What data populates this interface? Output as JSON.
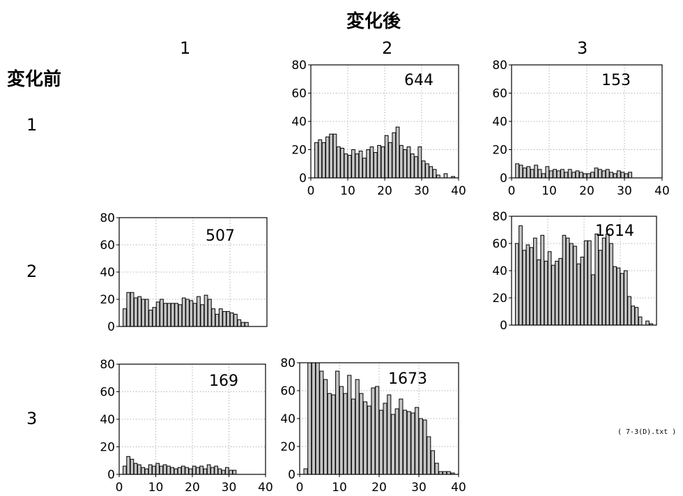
{
  "title_after": "変化後",
  "title_before": "変化前",
  "col_labels": [
    "1",
    "2",
    "3"
  ],
  "row_labels": [
    "1",
    "2",
    "3"
  ],
  "footnote": "( 7-3(D).txt )",
  "colors": {
    "bar_fill": "#c4c4c4",
    "bar_stroke": "#000000",
    "grid": "#9a9a9a"
  },
  "chart_data": [
    {
      "type": "bar",
      "id": "1-2",
      "from": "1",
      "to": "2",
      "count_label": "644",
      "ylim": [
        0,
        80
      ],
      "xlim": [
        0,
        40
      ],
      "xticks": [
        "0",
        "10",
        "20",
        "30",
        "40"
      ],
      "yticks": [
        "0",
        "20",
        "40",
        "60",
        "80"
      ],
      "x": [
        2,
        3,
        4,
        5,
        6,
        7,
        8,
        9,
        10,
        11,
        12,
        13,
        14,
        15,
        16,
        17,
        18,
        19,
        20,
        21,
        22,
        23,
        24,
        25,
        26,
        27,
        28,
        29,
        30,
        31,
        32,
        33,
        34,
        35,
        36,
        37,
        38,
        39
      ],
      "values": [
        25,
        27,
        25,
        29,
        31,
        31,
        22,
        21,
        17,
        16,
        20,
        17,
        19,
        14,
        20,
        22,
        18,
        23,
        22,
        30,
        25,
        32,
        36,
        23,
        20,
        22,
        17,
        15,
        22,
        12,
        10,
        8,
        6,
        2,
        0,
        3,
        0,
        1
      ]
    },
    {
      "type": "bar",
      "id": "1-3",
      "from": "1",
      "to": "3",
      "count_label": "153",
      "ylim": [
        0,
        80
      ],
      "xlim": [
        0,
        40
      ],
      "xticks": [
        "0",
        "10",
        "20",
        "30",
        "40"
      ],
      "yticks": [
        "0",
        "20",
        "40",
        "60",
        "80"
      ],
      "x": [
        2,
        3,
        4,
        5,
        6,
        7,
        8,
        9,
        10,
        11,
        12,
        13,
        14,
        15,
        16,
        17,
        18,
        19,
        20,
        21,
        22,
        23,
        24,
        25,
        26,
        27,
        28,
        29,
        30,
        31,
        32
      ],
      "values": [
        10,
        9,
        7,
        8,
        6,
        9,
        6,
        3,
        8,
        5,
        6,
        5,
        6,
        4,
        6,
        4,
        5,
        4,
        3,
        3,
        4,
        7,
        6,
        5,
        6,
        4,
        3,
        5,
        4,
        3,
        4
      ]
    },
    {
      "type": "bar",
      "id": "2-1",
      "from": "2",
      "to": "1",
      "count_label": "507",
      "ylim": [
        0,
        80
      ],
      "xlim": [
        0,
        40
      ],
      "xticks": [],
      "yticks": [
        "0",
        "20",
        "40",
        "60",
        "80"
      ],
      "x": [
        2,
        3,
        4,
        5,
        6,
        7,
        8,
        9,
        10,
        11,
        12,
        13,
        14,
        15,
        16,
        17,
        18,
        19,
        20,
        21,
        22,
        23,
        24,
        25,
        26,
        27,
        28,
        29,
        30,
        31,
        32,
        33,
        34,
        35
      ],
      "values": [
        13,
        25,
        25,
        21,
        22,
        20,
        20,
        12,
        14,
        18,
        20,
        17,
        17,
        17,
        17,
        16,
        21,
        20,
        19,
        17,
        22,
        16,
        23,
        20,
        13,
        9,
        13,
        11,
        11,
        10,
        9,
        5,
        3,
        3
      ]
    },
    {
      "type": "bar",
      "id": "2-3",
      "from": "2",
      "to": "3",
      "count_label": "1614",
      "ylim": [
        0,
        80
      ],
      "xlim": [
        0,
        40
      ],
      "xticks": [],
      "yticks": [
        "0",
        "20",
        "40",
        "60",
        "80"
      ],
      "x": [
        2,
        3,
        4,
        5,
        6,
        7,
        8,
        9,
        10,
        11,
        12,
        13,
        14,
        15,
        16,
        17,
        18,
        19,
        20,
        21,
        22,
        23,
        24,
        25,
        26,
        27,
        28,
        29,
        30,
        31,
        32,
        33,
        34,
        35,
        36,
        37,
        38,
        39
      ],
      "values": [
        60,
        73,
        55,
        59,
        57,
        64,
        48,
        66,
        47,
        54,
        44,
        47,
        49,
        66,
        64,
        60,
        58,
        45,
        50,
        62,
        62,
        37,
        67,
        55,
        64,
        67,
        60,
        43,
        42,
        38,
        40,
        21,
        14,
        13,
        6,
        0,
        3,
        1
      ]
    },
    {
      "type": "bar",
      "id": "3-1",
      "from": "3",
      "to": "1",
      "count_label": "169",
      "ylim": [
        0,
        80
      ],
      "xlim": [
        0,
        40
      ],
      "xticks": [
        "0",
        "10",
        "20",
        "30",
        "40"
      ],
      "yticks": [
        "0",
        "20",
        "40",
        "60",
        "80"
      ],
      "x": [
        2,
        3,
        4,
        5,
        6,
        7,
        8,
        9,
        10,
        11,
        12,
        13,
        14,
        15,
        16,
        17,
        18,
        19,
        20,
        21,
        22,
        23,
        24,
        25,
        26,
        27,
        28,
        29,
        30,
        31,
        32
      ],
      "values": [
        6,
        13,
        11,
        8,
        7,
        5,
        4,
        7,
        6,
        8,
        6,
        7,
        6,
        5,
        4,
        5,
        6,
        5,
        4,
        6,
        5,
        6,
        4,
        7,
        5,
        6,
        4,
        3,
        5,
        3,
        3
      ]
    },
    {
      "type": "bar",
      "id": "3-2",
      "from": "3",
      "to": "2",
      "count_label": "1673",
      "ylim": [
        0,
        80
      ],
      "xlim": [
        0,
        40
      ],
      "xticks": [
        "0",
        "10",
        "20",
        "30",
        "40"
      ],
      "yticks": [
        "0",
        "20",
        "40",
        "60",
        "80"
      ],
      "x": [
        2,
        3,
        4,
        5,
        6,
        7,
        8,
        9,
        10,
        11,
        12,
        13,
        14,
        15,
        16,
        17,
        18,
        19,
        20,
        21,
        22,
        23,
        24,
        25,
        26,
        27,
        28,
        29,
        30,
        31,
        32,
        33,
        34,
        35,
        36,
        37,
        38,
        39
      ],
      "values": [
        4,
        82,
        82,
        82,
        74,
        68,
        58,
        57,
        74,
        63,
        58,
        71,
        54,
        68,
        58,
        52,
        49,
        62,
        63,
        46,
        51,
        57,
        43,
        47,
        54,
        46,
        45,
        44,
        48,
        40,
        39,
        27,
        17,
        8,
        2,
        2,
        2,
        1
      ]
    }
  ]
}
